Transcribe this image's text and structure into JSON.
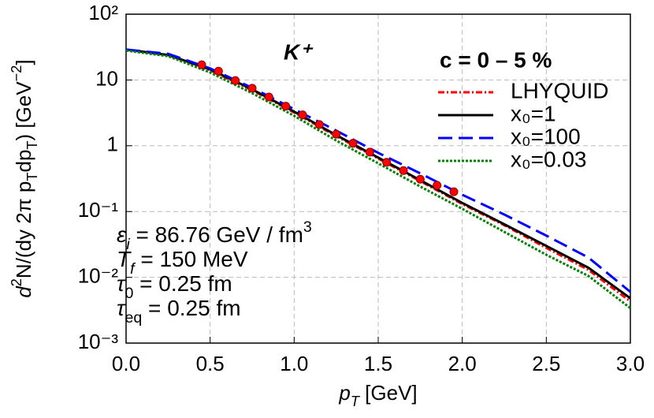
{
  "chart_data": {
    "type": "line",
    "log_y": true,
    "grid": true,
    "x_label": [
      {
        "text": "p",
        "italic": true
      },
      {
        "text": "T",
        "sub": true,
        "italic": true
      },
      {
        "text": " [GeV]"
      }
    ],
    "y_label": [
      {
        "text": "d",
        "italic": true
      },
      {
        "text": "2",
        "sup": true
      },
      {
        "text": "N/(dy 2π p"
      },
      {
        "text": "T",
        "sub": true
      },
      {
        "text": "dp"
      },
      {
        "text": "T",
        "sub": true
      },
      {
        "text": ") [GeV"
      },
      {
        "text": "−2",
        "sup": true
      },
      {
        "text": "]"
      }
    ],
    "xlim": [
      0,
      3.0
    ],
    "ylim": [
      0.001,
      100
    ],
    "xticks": [
      {
        "value": 0,
        "label": "0.0"
      },
      0.5,
      {
        "value": 1,
        "label": "1.0"
      },
      1.5,
      {
        "value": 2,
        "label": "2.0"
      },
      2.5,
      {
        "value": 3,
        "label": "3.0"
      }
    ],
    "yticks": [
      {
        "value": 0.001,
        "label": "10⁻³"
      },
      {
        "value": 0.01,
        "label": "10⁻²"
      },
      {
        "value": 0.1,
        "label": "10⁻¹"
      },
      1,
      10,
      {
        "value": 100,
        "label": "10²"
      }
    ],
    "particle": "K⁺",
    "legend_title": "c = 0 – 5 %",
    "annotations": [
      [
        {
          "text": "ε",
          "italic": true
        },
        {
          "text": "i",
          "sub": true,
          "italic": true
        },
        {
          "text": " = 86.76 GeV / fm"
        },
        {
          "text": "3",
          "sup": true
        }
      ],
      [
        {
          "text": "T",
          "italic": true
        },
        {
          "text": "f",
          "sub": true,
          "italic": true
        },
        {
          "text": " = 150 MeV"
        }
      ],
      [
        {
          "text": "τ",
          "italic": true
        },
        {
          "text": "0",
          "sub": true
        },
        {
          "text": " = 0.25 fm"
        }
      ],
      [
        {
          "text": "τ",
          "italic": true
        },
        {
          "text": "eq",
          "sub": true
        },
        {
          "text": " = 0.25 fm"
        }
      ]
    ],
    "x": [
      0,
      0.25,
      0.5,
      0.75,
      1.0,
      1.25,
      1.5,
      1.75,
      2.0,
      2.25,
      2.5,
      2.75,
      3.0
    ],
    "series": [
      {
        "name": "LHYQUID",
        "color": "#ff0000",
        "dash": "8,3,2,3",
        "values": [
          29,
          24,
          14,
          7.0,
          3.2,
          1.4,
          0.64,
          0.29,
          0.13,
          0.062,
          0.028,
          0.013,
          0.0043
        ]
      },
      {
        "name": "x₀=1",
        "color": "#000000",
        "dash": "",
        "values": [
          29,
          24,
          14.5,
          7.2,
          3.3,
          1.45,
          0.66,
          0.3,
          0.135,
          0.064,
          0.03,
          0.014,
          0.0048
        ]
      },
      {
        "name": "x₀=100",
        "color": "#0000ff",
        "dash": "18,8",
        "values": [
          29,
          25,
          15,
          7.6,
          3.6,
          1.7,
          0.78,
          0.38,
          0.18,
          0.09,
          0.043,
          0.02,
          0.006
        ]
      },
      {
        "name": "x₀=0.03",
        "color": "#008000",
        "dash": "3,2",
        "values": [
          28,
          23,
          13,
          6.3,
          2.85,
          1.2,
          0.54,
          0.24,
          0.11,
          0.049,
          0.022,
          0.0105,
          0.0034
        ]
      }
    ],
    "points": {
      "color": "#ff0000",
      "x": [
        0.45,
        0.55,
        0.65,
        0.75,
        0.85,
        0.95,
        1.05,
        1.15,
        1.25,
        1.35,
        1.45,
        1.55,
        1.65,
        1.75,
        1.85,
        1.95
      ],
      "values": [
        17,
        13.6,
        9.8,
        7.5,
        5.5,
        4.0,
        2.95,
        2.1,
        1.5,
        1.09,
        0.8,
        0.56,
        0.42,
        0.31,
        0.25,
        0.2
      ]
    }
  }
}
